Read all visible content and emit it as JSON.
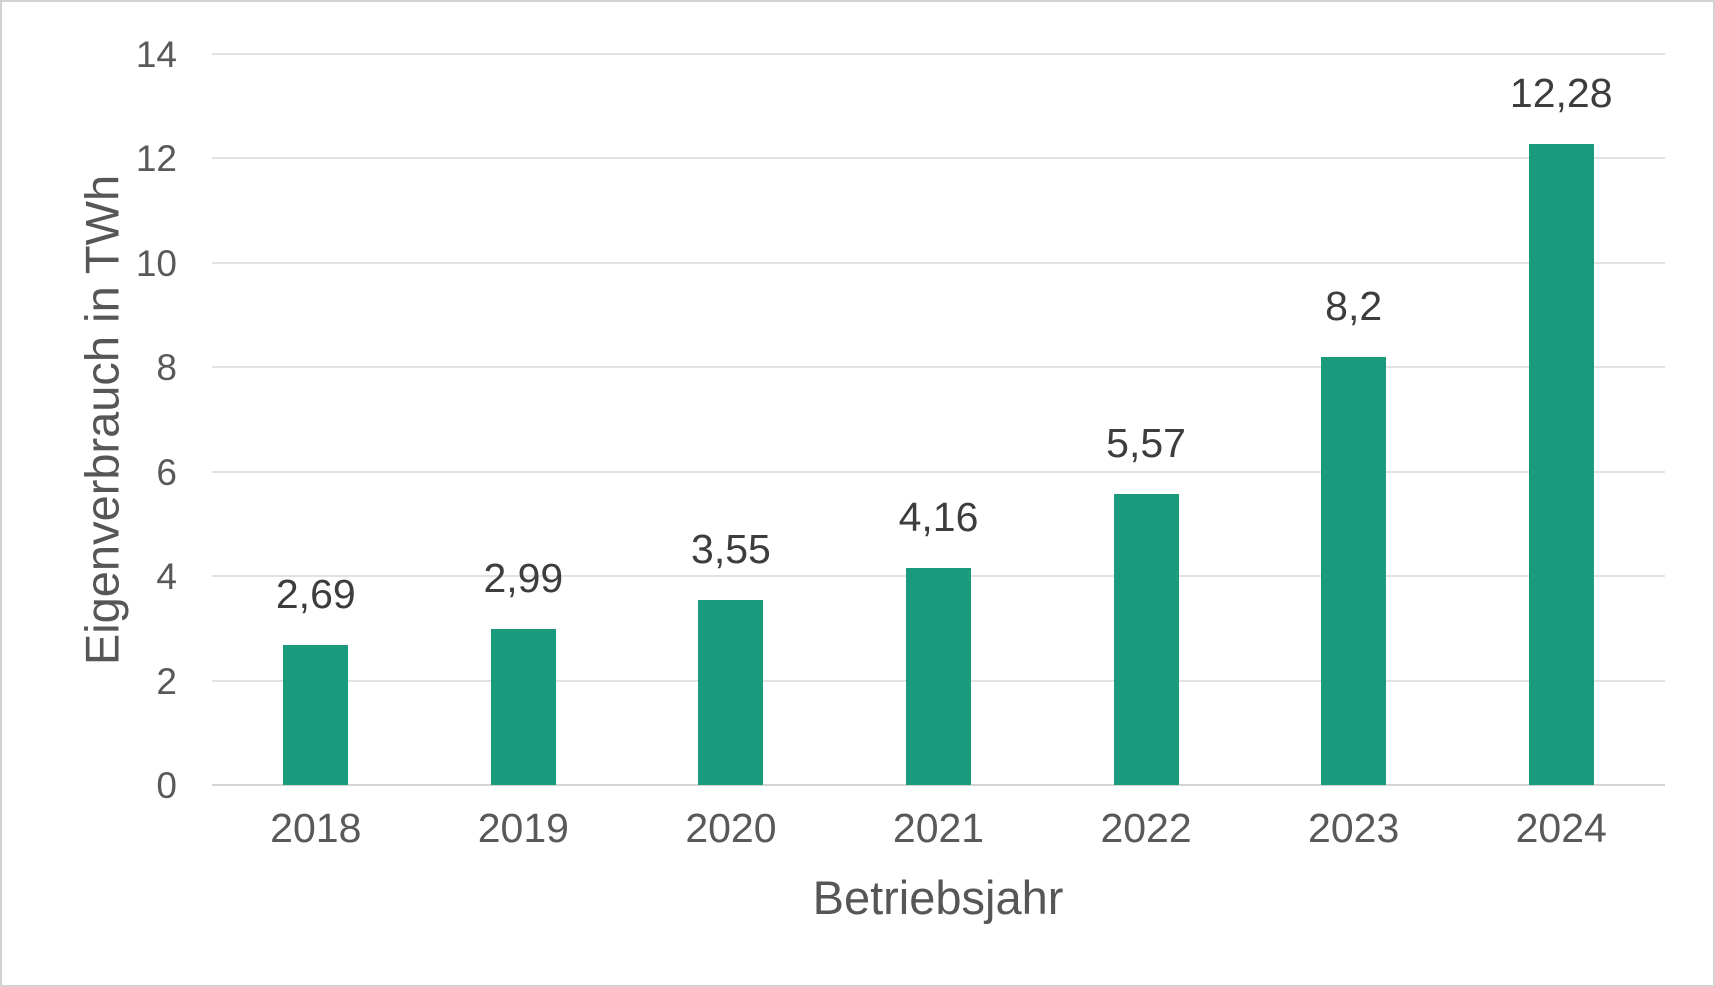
{
  "chart_data": {
    "type": "bar",
    "title": "",
    "categories": [
      "2018",
      "2019",
      "2020",
      "2021",
      "2022",
      "2023",
      "2024"
    ],
    "values": [
      2.69,
      2.99,
      3.55,
      4.16,
      5.57,
      8.2,
      12.28
    ],
    "value_labels": [
      "2,69",
      "2,99",
      "3,55",
      "4,16",
      "5,57",
      "8,2",
      "12,28"
    ],
    "xlabel": "Betriebsjahr",
    "ylabel": "Eigenverbrauch in TWh",
    "ylim": [
      0,
      14
    ],
    "ytick_interval": 2,
    "yticks": [
      "0",
      "2",
      "4",
      "6",
      "8",
      "10",
      "12",
      "14"
    ],
    "grid": true,
    "legend": false,
    "number_format": "de-DE comma decimals"
  },
  "colors": {
    "bar": "#1a9b7e",
    "gridline": "#e2e2e2",
    "axis_baseline": "#d4d4d4",
    "axis_text": "#595959",
    "data_label_text": "#3d3d3d",
    "title_text": "#565656",
    "canvas_border": "#d2d2d2",
    "background": "#ffffff"
  }
}
